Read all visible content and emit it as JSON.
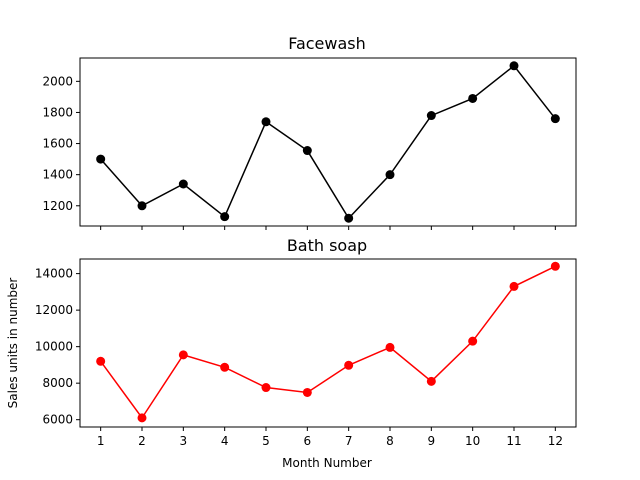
{
  "chart_data": [
    {
      "type": "line",
      "title": "Facewash",
      "x": [
        1,
        2,
        3,
        4,
        5,
        6,
        7,
        8,
        9,
        10,
        11,
        12
      ],
      "series": [
        {
          "values": [
            1500,
            1200,
            1340,
            1130,
            1740,
            1555,
            1120,
            1400,
            1780,
            1890,
            2100,
            1760
          ],
          "color": "#000000",
          "marker": "circle"
        }
      ],
      "xlim": [
        0.5,
        12.5
      ],
      "ylim": [
        1070,
        2150
      ],
      "yticks": [
        1200,
        1400,
        1600,
        1800,
        2000
      ],
      "show_x_tick_labels": false,
      "grid": false
    },
    {
      "type": "line",
      "title": "Bath soap",
      "x": [
        1,
        2,
        3,
        4,
        5,
        6,
        7,
        8,
        9,
        10,
        11,
        12
      ],
      "series": [
        {
          "values": [
            9200,
            6100,
            9550,
            8870,
            7760,
            7490,
            8980,
            9960,
            8100,
            10300,
            13300,
            14400
          ],
          "color": "#ff0000",
          "marker": "circle"
        }
      ],
      "xlim": [
        0.5,
        12.5
      ],
      "ylim": [
        5600,
        14800
      ],
      "yticks": [
        6000,
        8000,
        10000,
        12000,
        14000
      ],
      "xticks": [
        1,
        2,
        3,
        4,
        5,
        6,
        7,
        8,
        9,
        10,
        11,
        12
      ],
      "xlabel": "Month Number",
      "ylabel": "Sales units in number",
      "grid": false
    }
  ]
}
